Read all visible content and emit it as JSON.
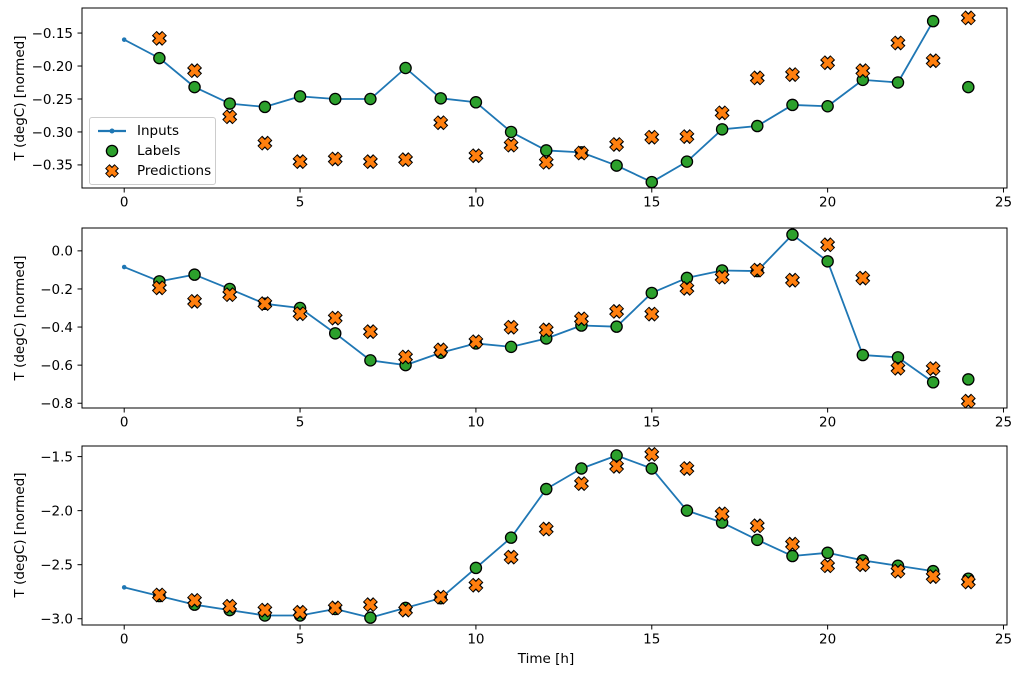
{
  "figure": {
    "xlabel": "Time [h]",
    "ylabel": "T (degC) [normed]"
  },
  "chart_data": [
    {
      "type": "line",
      "subtype": "line+scatter",
      "title": "",
      "xlabel": "",
      "ylabel": "T (degC) [normed]",
      "xlim": [
        -1.2,
        25.1
      ],
      "ylim": [
        -0.385,
        -0.112
      ],
      "xticks": [
        0,
        5,
        10,
        15,
        20,
        25
      ],
      "yticks": [
        -0.15,
        -0.2,
        -0.25,
        -0.3,
        -0.35
      ],
      "ytick_decimals": 2,
      "grid": false,
      "legend": true,
      "legend_position": "center left",
      "series": [
        {
          "name": "Inputs",
          "plot": "line",
          "marker": "dot",
          "color": "#1f77b4",
          "x": [
            0,
            1,
            2,
            3,
            4,
            5,
            6,
            7,
            8,
            9,
            10,
            11,
            12,
            13,
            14,
            15,
            16,
            17,
            18,
            19,
            20,
            21,
            22,
            23
          ],
          "y": [
            -0.16,
            -0.188,
            -0.232,
            -0.257,
            -0.262,
            -0.246,
            -0.25,
            -0.25,
            -0.203,
            -0.249,
            -0.255,
            -0.3,
            -0.328,
            -0.331,
            -0.351,
            -0.376,
            -0.345,
            -0.296,
            -0.291,
            -0.259,
            -0.261,
            -0.221,
            -0.225,
            -0.132
          ]
        },
        {
          "name": "Labels",
          "plot": "scatter",
          "marker": "circle",
          "color": "#2ca02c",
          "edge": "#000000",
          "x": [
            1,
            2,
            3,
            4,
            5,
            6,
            7,
            8,
            9,
            10,
            11,
            12,
            13,
            14,
            15,
            16,
            17,
            18,
            19,
            20,
            21,
            22,
            23,
            24
          ],
          "y": [
            -0.188,
            -0.232,
            -0.257,
            -0.262,
            -0.246,
            -0.25,
            -0.25,
            -0.203,
            -0.249,
            -0.255,
            -0.3,
            -0.328,
            -0.331,
            -0.351,
            -0.376,
            -0.345,
            -0.296,
            -0.291,
            -0.259,
            -0.261,
            -0.221,
            -0.225,
            -0.132,
            -0.232
          ]
        },
        {
          "name": "Predictions",
          "plot": "scatter",
          "marker": "X",
          "color": "#ff7f0e",
          "edge": "#000000",
          "x": [
            1,
            2,
            3,
            4,
            5,
            6,
            7,
            8,
            9,
            10,
            11,
            12,
            13,
            14,
            15,
            16,
            17,
            18,
            19,
            20,
            21,
            22,
            23,
            24
          ],
          "y": [
            -0.158,
            -0.207,
            -0.277,
            -0.317,
            -0.345,
            -0.341,
            -0.345,
            -0.342,
            -0.286,
            -0.336,
            -0.32,
            -0.346,
            -0.332,
            -0.319,
            -0.308,
            -0.307,
            -0.271,
            -0.218,
            -0.213,
            -0.195,
            -0.207,
            -0.165,
            -0.192,
            -0.127
          ]
        }
      ]
    },
    {
      "type": "line",
      "subtype": "line+scatter",
      "title": "",
      "xlabel": "",
      "ylabel": "T (degC) [normed]",
      "xlim": [
        -1.2,
        25.1
      ],
      "ylim": [
        -0.825,
        0.12
      ],
      "xticks": [
        0,
        5,
        10,
        15,
        20,
        25
      ],
      "yticks": [
        0.0,
        -0.2,
        -0.4,
        -0.6,
        -0.8
      ],
      "ytick_decimals": 1,
      "grid": false,
      "legend": false,
      "series": [
        {
          "name": "Inputs",
          "plot": "line",
          "marker": "dot",
          "color": "#1f77b4",
          "x": [
            0,
            1,
            2,
            3,
            4,
            5,
            6,
            7,
            8,
            9,
            10,
            11,
            12,
            13,
            14,
            15,
            16,
            17,
            18,
            19,
            20,
            21,
            22,
            23
          ],
          "y": [
            -0.085,
            -0.16,
            -0.125,
            -0.2,
            -0.278,
            -0.3,
            -0.433,
            -0.575,
            -0.6,
            -0.535,
            -0.486,
            -0.504,
            -0.46,
            -0.392,
            -0.398,
            -0.221,
            -0.142,
            -0.103,
            -0.106,
            0.085,
            -0.055,
            -0.547,
            -0.559,
            -0.69
          ]
        },
        {
          "name": "Labels",
          "plot": "scatter",
          "marker": "circle",
          "color": "#2ca02c",
          "edge": "#000000",
          "x": [
            1,
            2,
            3,
            4,
            5,
            6,
            7,
            8,
            9,
            10,
            11,
            12,
            13,
            14,
            15,
            16,
            17,
            18,
            19,
            20,
            21,
            22,
            23,
            24
          ],
          "y": [
            -0.16,
            -0.125,
            -0.2,
            -0.278,
            -0.3,
            -0.433,
            -0.575,
            -0.6,
            -0.535,
            -0.486,
            -0.504,
            -0.46,
            -0.392,
            -0.398,
            -0.221,
            -0.142,
            -0.103,
            -0.106,
            0.085,
            -0.055,
            -0.547,
            -0.559,
            -0.69,
            -0.675
          ]
        },
        {
          "name": "Predictions",
          "plot": "scatter",
          "marker": "X",
          "color": "#ff7f0e",
          "edge": "#000000",
          "x": [
            1,
            2,
            3,
            4,
            5,
            6,
            7,
            8,
            9,
            10,
            11,
            12,
            13,
            14,
            15,
            16,
            17,
            18,
            19,
            20,
            21,
            22,
            23,
            24
          ],
          "y": [
            -0.194,
            -0.265,
            -0.23,
            -0.277,
            -0.33,
            -0.353,
            -0.424,
            -0.557,
            -0.52,
            -0.477,
            -0.401,
            -0.415,
            -0.357,
            -0.318,
            -0.332,
            -0.197,
            -0.138,
            -0.101,
            -0.154,
            0.032,
            -0.143,
            -0.616,
            -0.618,
            -0.789
          ]
        }
      ]
    },
    {
      "type": "line",
      "subtype": "line+scatter",
      "title": "",
      "xlabel": "Time [h]",
      "ylabel": "T (degC) [normed]",
      "xlim": [
        -1.2,
        25.1
      ],
      "ylim": [
        -3.058,
        -1.402
      ],
      "xticks": [
        0,
        5,
        10,
        15,
        20,
        25
      ],
      "yticks": [
        -1.5,
        -2.0,
        -2.5,
        -3.0
      ],
      "ytick_decimals": 1,
      "grid": false,
      "legend": false,
      "series": [
        {
          "name": "Inputs",
          "plot": "line",
          "marker": "dot",
          "color": "#1f77b4",
          "x": [
            0,
            1,
            2,
            3,
            4,
            5,
            6,
            7,
            8,
            9,
            10,
            11,
            12,
            13,
            14,
            15,
            16,
            17,
            18,
            19,
            20,
            21,
            22,
            23
          ],
          "y": [
            -2.71,
            -2.79,
            -2.87,
            -2.92,
            -2.97,
            -2.97,
            -2.91,
            -2.99,
            -2.9,
            -2.81,
            -2.53,
            -2.25,
            -1.8,
            -1.61,
            -1.49,
            -1.61,
            -2.0,
            -2.11,
            -2.27,
            -2.42,
            -2.39,
            -2.46,
            -2.51,
            -2.56
          ]
        },
        {
          "name": "Labels",
          "plot": "scatter",
          "marker": "circle",
          "color": "#2ca02c",
          "edge": "#000000",
          "x": [
            1,
            2,
            3,
            4,
            5,
            6,
            7,
            8,
            9,
            10,
            11,
            12,
            13,
            14,
            15,
            16,
            17,
            18,
            19,
            20,
            21,
            22,
            23,
            24
          ],
          "y": [
            -2.79,
            -2.87,
            -2.92,
            -2.97,
            -2.97,
            -2.91,
            -2.99,
            -2.9,
            -2.81,
            -2.53,
            -2.25,
            -1.8,
            -1.61,
            -1.49,
            -1.61,
            -2.0,
            -2.11,
            -2.27,
            -2.42,
            -2.39,
            -2.46,
            -2.51,
            -2.56,
            -2.63
          ]
        },
        {
          "name": "Predictions",
          "plot": "scatter",
          "marker": "X",
          "color": "#ff7f0e",
          "edge": "#000000",
          "x": [
            1,
            2,
            3,
            4,
            5,
            6,
            7,
            8,
            9,
            10,
            11,
            12,
            13,
            14,
            15,
            16,
            17,
            18,
            19,
            20,
            21,
            22,
            23,
            24
          ],
          "y": [
            -2.78,
            -2.83,
            -2.885,
            -2.92,
            -2.94,
            -2.9,
            -2.87,
            -2.92,
            -2.8,
            -2.69,
            -2.43,
            -2.17,
            -1.75,
            -1.59,
            -1.48,
            -1.61,
            -2.03,
            -2.14,
            -2.31,
            -2.51,
            -2.5,
            -2.56,
            -2.61,
            -2.66
          ]
        }
      ]
    }
  ]
}
